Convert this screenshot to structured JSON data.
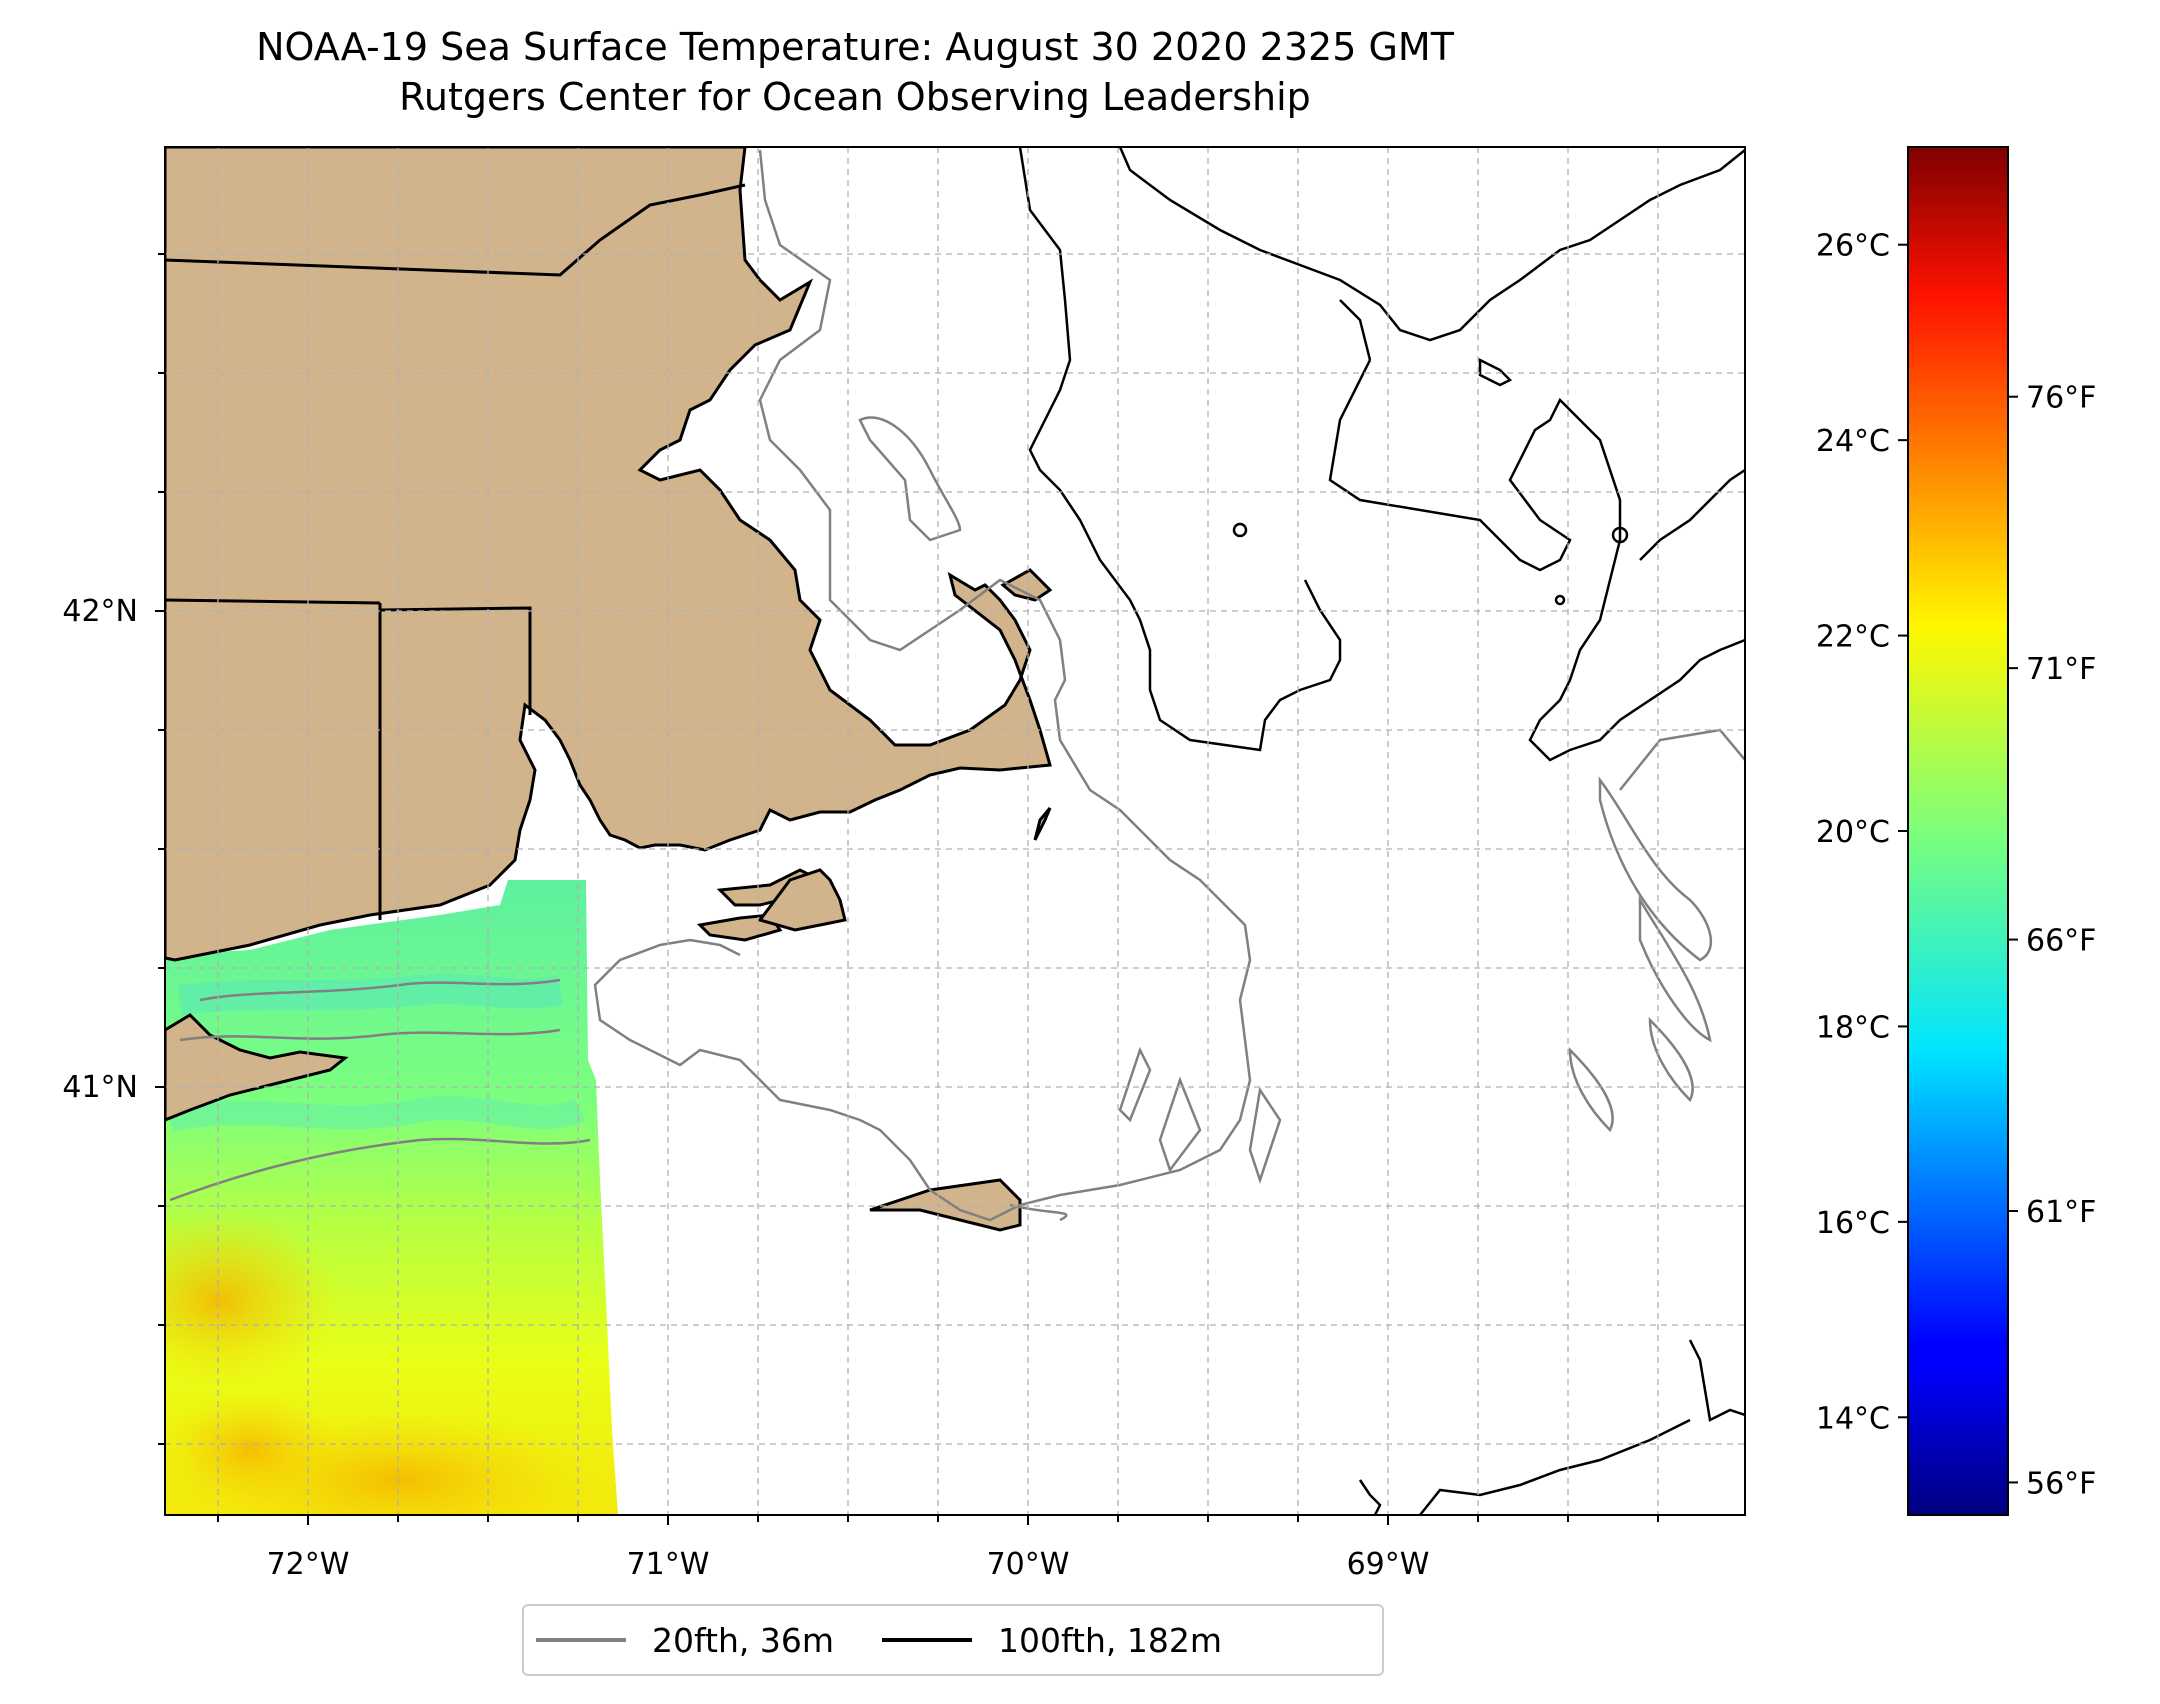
{
  "title": {
    "line1": "NOAA-19 Sea Surface Temperature: August 30 2020 2325 GMT",
    "line2": "Rutgers Center for Ocean Observing Leadership"
  },
  "axes": {
    "x_ticks": [
      "72°W",
      "71°W",
      "70°W",
      "69°W"
    ],
    "y_ticks": [
      "42°N",
      "41°N"
    ]
  },
  "colorbar": {
    "celsius_ticks": [
      "26°C",
      "24°C",
      "22°C",
      "20°C",
      "18°C",
      "16°C",
      "14°C"
    ],
    "fahrenheit_ticks": [
      "76°F",
      "71°F",
      "66°F",
      "61°F",
      "56°F"
    ],
    "colormap": "jet",
    "range_c": [
      13,
      27
    ]
  },
  "legend": {
    "entries": [
      {
        "label": "20fth, 36m",
        "color": "#808080"
      },
      {
        "label": "100fth, 182m",
        "color": "#000000"
      }
    ]
  },
  "colors": {
    "land": "#d2b48c",
    "isobath_20fth": "#808080",
    "isobath_100fth": "#000000",
    "grid": "#b0b0b0"
  }
}
